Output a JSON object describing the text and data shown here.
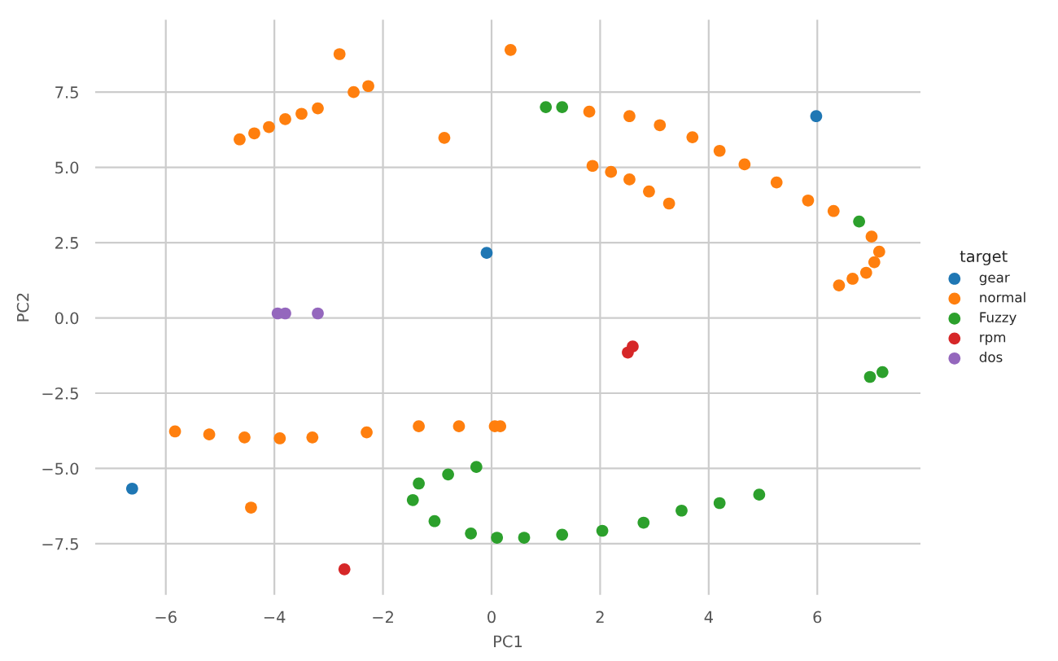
{
  "chart_data": {
    "type": "scatter",
    "xlabel": "PC1",
    "ylabel": "PC2",
    "legend_title": "target",
    "legend": "right",
    "grid": true,
    "marker": "circle",
    "xlim": [
      -7.3,
      7.9
    ],
    "ylim": [
      -9.2,
      9.9
    ],
    "xticks": [
      {
        "value": -6,
        "label": "−6"
      },
      {
        "value": -4,
        "label": "−4"
      },
      {
        "value": -2,
        "label": "−2"
      },
      0,
      2,
      4,
      6
    ],
    "yticks": [
      {
        "value": -7.5,
        "label": "−7.5"
      },
      {
        "value": -5.0,
        "label": "−5.0"
      },
      {
        "value": -2.5,
        "label": "−2.5"
      },
      {
        "value": 0,
        "label": "0.0"
      },
      2.5,
      {
        "value": 5,
        "label": "5.0"
      },
      7.5
    ],
    "series": [
      {
        "name": "gear",
        "color": "#1f77b4",
        "x": [
          -0.09,
          -6.62,
          5.98
        ],
        "values": [
          2.16,
          -5.67,
          6.7
        ]
      },
      {
        "name": "normal",
        "color": "#ff7f0e",
        "x": [
          -2.8,
          0.35,
          -2.54,
          -2.27,
          -4.64,
          -4.37,
          -4.1,
          -3.8,
          -3.5,
          -3.2,
          -0.87,
          1.08,
          1.8,
          2.54,
          3.1,
          3.7,
          4.2,
          4.66,
          5.25,
          5.83,
          6.3,
          6.7,
          7.0,
          7.14,
          7.05,
          6.9,
          6.65,
          6.4,
          1.86,
          2.2,
          2.54,
          2.9,
          3.27,
          -5.83,
          -5.2,
          -4.55,
          -3.9,
          -3.3,
          -2.3,
          -1.34,
          -0.6,
          0.06,
          0.16,
          -4.43
        ],
        "values": [
          8.76,
          8.9,
          7.5,
          7.7,
          5.93,
          6.13,
          6.34,
          6.6,
          6.78,
          6.96,
          5.98,
          null,
          6.85,
          6.7,
          6.4,
          6.0,
          5.55,
          5.1,
          4.5,
          3.9,
          3.55,
          null,
          2.7,
          2.2,
          1.85,
          1.5,
          1.3,
          1.08,
          5.05,
          4.85,
          4.6,
          4.2,
          3.8,
          -3.77,
          -3.87,
          -3.97,
          -4.0,
          -3.97,
          -3.8,
          -3.6,
          -3.6,
          -3.6,
          -3.6,
          -6.3
        ]
      },
      {
        "name": "Fuzzy",
        "color": "#2ca02c",
        "x": [
          1.0,
          1.3,
          6.77,
          6.97,
          7.2,
          -0.28,
          -0.8,
          -1.34,
          -1.45,
          -1.05,
          -0.38,
          0.1,
          0.6,
          1.3,
          2.04,
          2.8,
          3.5,
          4.2,
          4.93
        ],
        "values": [
          7.0,
          7.0,
          3.2,
          -1.96,
          -1.8,
          -4.95,
          -5.2,
          -5.5,
          -6.05,
          -6.75,
          -7.16,
          -7.3,
          -7.3,
          -7.2,
          -7.07,
          -6.8,
          -6.4,
          -6.15,
          -5.87
        ]
      },
      {
        "name": "rpm",
        "color": "#d62728",
        "x": [
          2.51,
          2.6,
          -2.71
        ],
        "values": [
          -1.15,
          -0.95,
          -8.35
        ]
      },
      {
        "name": "dos",
        "color": "#9467bd",
        "x": [
          -3.94,
          -3.8,
          -3.2
        ],
        "values": [
          0.15,
          0.15,
          0.15
        ]
      }
    ]
  }
}
